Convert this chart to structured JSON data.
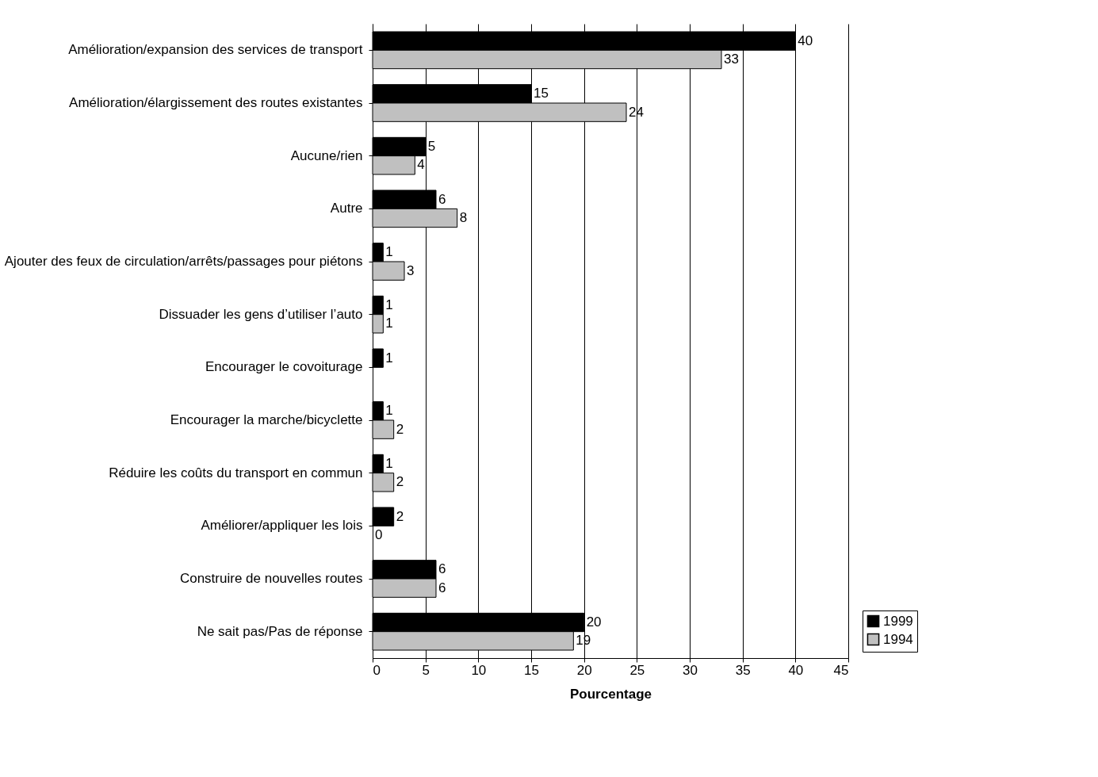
{
  "chart_data": {
    "type": "bar",
    "orientation": "horizontal",
    "xlabel": "Pourcentage",
    "categories": [
      "Amélioration/expansion des services de transport",
      "Amélioration/élargissement des routes existantes",
      "Aucune/rien",
      "Autre",
      "Ajouter des feux de circulation/arrêts/passages pour piétons",
      "Dissuader les gens d’utiliser l’auto",
      "Encourager le covoiturage",
      "Encourager la marche/bicyclette",
      "Réduire les coûts du transport en commun",
      "Améliorer/appliquer les lois",
      "Construire de nouvelles routes",
      "Ne sait pas/Pas de réponse"
    ],
    "series": [
      {
        "name": "1999",
        "color": "#000000",
        "values": [
          40,
          15,
          5,
          6,
          1,
          1,
          1,
          1,
          1,
          2,
          6,
          20
        ]
      },
      {
        "name": "1994",
        "color": "#c0c0c0",
        "values": [
          33,
          24,
          4,
          8,
          3,
          1,
          null,
          2,
          2,
          0,
          6,
          19
        ]
      }
    ],
    "xlim": [
      0,
      45
    ],
    "xticks": [
      0,
      5,
      10,
      15,
      20,
      25,
      30,
      35,
      40,
      45
    ],
    "grid": "x",
    "legend": "bottom right",
    "data_labels": true
  }
}
